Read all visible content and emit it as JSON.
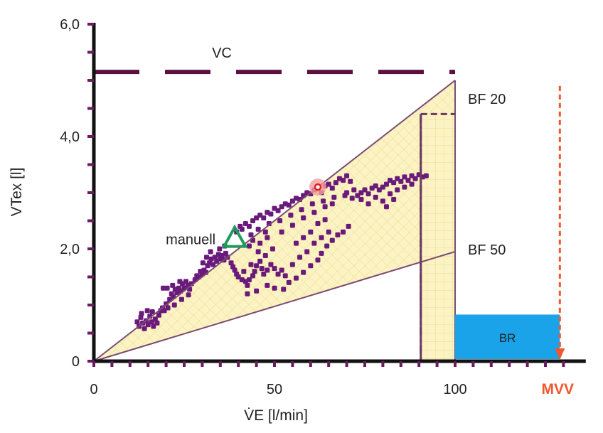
{
  "chart_data": {
    "type": "scatter",
    "xlabel": "V̇E [l/min]",
    "ylabel": "VTex [l]",
    "xlim": [
      0,
      135
    ],
    "ylim": [
      0,
      6
    ],
    "x_ticks": [
      "0",
      "50",
      "100"
    ],
    "y_ticks": [
      "0",
      "2,0",
      "4,0",
      "6,0"
    ],
    "x_tick_values": [
      0,
      50,
      100
    ],
    "y_tick_values": [
      0,
      2,
      4,
      6
    ],
    "grid": false,
    "colors": {
      "axis": "#111111",
      "tick": "#6a1a5e",
      "vc": "#5c1040",
      "bf": "#7b4a75",
      "points": "#6a1a7a",
      "manual": "#1e9a5a",
      "highlight": "#e02020",
      "br": "#1aa3e8",
      "mvv": "#f0572e",
      "shade": "#fbf3c4",
      "shade_grid": "#ecdc8c"
    },
    "vc": {
      "label": "VC",
      "y": 5.15,
      "x_end": 100
    },
    "bf_lines": [
      {
        "label": "BF 20",
        "end": [
          100,
          5.0
        ]
      },
      {
        "label": "BF 50",
        "end": [
          100,
          1.95
        ]
      }
    ],
    "box": {
      "x": 90.5,
      "y": 4.4
    },
    "br": {
      "label": "BR",
      "x": [
        100,
        129
      ],
      "y": [
        0,
        0.83
      ]
    },
    "mvv": {
      "label": "MVV",
      "x": 129,
      "y_top": 4.9
    },
    "manual_point": {
      "label": "manuell",
      "x": 39,
      "y": 2.17
    },
    "highlight_point": {
      "x": 62,
      "y": 3.1
    },
    "points": [
      [
        12.0,
        0.7
      ],
      [
        12.5,
        0.62
      ],
      [
        13.0,
        0.78
      ],
      [
        13.5,
        0.68
      ],
      [
        14.0,
        0.58
      ],
      [
        14.5,
        0.72
      ],
      [
        15.0,
        0.65
      ],
      [
        15.5,
        0.8
      ],
      [
        16.0,
        0.7
      ],
      [
        16.5,
        0.62
      ],
      [
        17.0,
        0.75
      ],
      [
        17.5,
        0.68
      ],
      [
        13.2,
        0.85
      ],
      [
        14.8,
        0.9
      ],
      [
        16.2,
        0.88
      ],
      [
        18.0,
        0.82
      ],
      [
        18.5,
        0.9
      ],
      [
        19.0,
        0.95
      ],
      [
        19.5,
        0.9
      ],
      [
        20.0,
        1.02
      ],
      [
        20.5,
        0.95
      ],
      [
        21.0,
        1.1
      ],
      [
        21.5,
        1.2
      ],
      [
        22.0,
        1.15
      ],
      [
        22.5,
        1.28
      ],
      [
        23.0,
        1.22
      ],
      [
        23.5,
        1.3
      ],
      [
        24.0,
        1.25
      ],
      [
        24.5,
        1.38
      ],
      [
        25.0,
        1.3
      ],
      [
        25.5,
        1.42
      ],
      [
        26.0,
        1.35
      ],
      [
        26.5,
        1.28
      ],
      [
        27.0,
        1.38
      ],
      [
        21.8,
        1.35
      ],
      [
        23.8,
        1.42
      ],
      [
        20.3,
        1.3
      ],
      [
        22.3,
        1.0
      ],
      [
        24.3,
        1.1
      ],
      [
        26.2,
        1.18
      ],
      [
        19.2,
        1.3
      ],
      [
        28.0,
        1.45
      ],
      [
        28.5,
        1.52
      ],
      [
        29.0,
        1.5
      ],
      [
        29.5,
        1.6
      ],
      [
        30.0,
        1.55
      ],
      [
        30.5,
        1.62
      ],
      [
        31.0,
        1.58
      ],
      [
        31.5,
        1.7
      ],
      [
        32.0,
        1.75
      ],
      [
        32.5,
        1.82
      ],
      [
        33.0,
        1.72
      ],
      [
        33.5,
        1.85
      ],
      [
        34.0,
        1.78
      ],
      [
        34.5,
        1.9
      ],
      [
        35.0,
        1.82
      ],
      [
        35.5,
        1.88
      ],
      [
        36.0,
        1.8
      ],
      [
        36.5,
        1.92
      ],
      [
        37.0,
        1.85
      ],
      [
        32.3,
        1.95
      ],
      [
        34.8,
        2.0
      ],
      [
        36.2,
        2.05
      ],
      [
        31.2,
        1.85
      ],
      [
        30.2,
        1.75
      ],
      [
        38.0,
        1.75
      ],
      [
        38.5,
        1.68
      ],
      [
        39.0,
        1.62
      ],
      [
        39.5,
        1.55
      ],
      [
        40.0,
        1.5
      ],
      [
        41.0,
        1.45
      ],
      [
        42.0,
        1.42
      ],
      [
        42.5,
        1.35
      ],
      [
        43.0,
        1.45
      ],
      [
        44.0,
        1.52
      ],
      [
        44.5,
        1.6
      ],
      [
        45.0,
        1.7
      ],
      [
        46.0,
        1.78
      ],
      [
        46.5,
        1.65
      ],
      [
        47.0,
        1.55
      ],
      [
        48.0,
        1.62
      ],
      [
        49.0,
        1.72
      ],
      [
        50.0,
        1.65
      ],
      [
        51.0,
        1.55
      ],
      [
        52.0,
        1.62
      ],
      [
        53.0,
        1.52
      ],
      [
        41.5,
        1.6
      ],
      [
        43.5,
        1.72
      ],
      [
        47.5,
        1.88
      ],
      [
        45.5,
        1.95
      ],
      [
        43.0,
        2.05
      ],
      [
        46.0,
        2.1
      ],
      [
        49.5,
        2.0
      ],
      [
        40.5,
        2.4
      ],
      [
        41.0,
        2.35
      ],
      [
        42.0,
        2.45
      ],
      [
        43.0,
        2.4
      ],
      [
        44.0,
        2.5
      ],
      [
        45.0,
        2.55
      ],
      [
        46.0,
        2.6
      ],
      [
        47.0,
        2.55
      ],
      [
        48.0,
        2.65
      ],
      [
        49.0,
        2.62
      ],
      [
        50.0,
        2.72
      ],
      [
        51.0,
        2.68
      ],
      [
        52.0,
        2.75
      ],
      [
        53.0,
        2.8
      ],
      [
        54.0,
        2.78
      ],
      [
        55.0,
        2.85
      ],
      [
        56.0,
        2.9
      ],
      [
        57.0,
        2.88
      ],
      [
        58.0,
        2.95
      ],
      [
        59.0,
        3.0
      ],
      [
        60.0,
        2.98
      ],
      [
        61.0,
        3.05
      ],
      [
        62.0,
        3.08
      ],
      [
        63.0,
        3.0
      ],
      [
        64.0,
        3.12
      ],
      [
        65.0,
        3.15
      ],
      [
        66.0,
        3.08
      ],
      [
        67.0,
        3.18
      ],
      [
        68.0,
        3.25
      ],
      [
        69.0,
        3.22
      ],
      [
        70.0,
        3.3
      ],
      [
        71.0,
        3.2
      ],
      [
        45.5,
        2.35
      ],
      [
        48.5,
        2.45
      ],
      [
        51.5,
        2.5
      ],
      [
        54.5,
        2.6
      ],
      [
        57.5,
        2.7
      ],
      [
        60.5,
        2.8
      ],
      [
        63.5,
        2.85
      ],
      [
        66.5,
        2.92
      ],
      [
        69.5,
        2.95
      ],
      [
        43.5,
        2.25
      ],
      [
        47.5,
        2.3
      ],
      [
        39.5,
        2.3
      ],
      [
        44.0,
        2.15
      ],
      [
        48.0,
        2.2
      ],
      [
        52.0,
        2.3
      ],
      [
        55.0,
        2.42
      ],
      [
        58.0,
        2.55
      ],
      [
        61.0,
        2.65
      ],
      [
        64.0,
        2.75
      ],
      [
        66.0,
        2.8
      ],
      [
        70.0,
        3.0
      ],
      [
        72.0,
        3.05
      ],
      [
        73.0,
        2.95
      ],
      [
        74.0,
        3.0
      ],
      [
        75.0,
        3.05
      ],
      [
        76.0,
        2.98
      ],
      [
        77.0,
        3.08
      ],
      [
        78.0,
        3.12
      ],
      [
        79.0,
        3.05
      ],
      [
        80.0,
        3.1
      ],
      [
        81.0,
        3.15
      ],
      [
        82.0,
        3.22
      ],
      [
        83.0,
        3.18
      ],
      [
        84.0,
        3.25
      ],
      [
        85.0,
        3.2
      ],
      [
        86.0,
        3.28
      ],
      [
        87.0,
        3.22
      ],
      [
        88.0,
        3.3
      ],
      [
        89.0,
        3.25
      ],
      [
        90.0,
        3.32
      ],
      [
        91.0,
        3.28
      ],
      [
        92.0,
        3.3
      ],
      [
        78.0,
        2.92
      ],
      [
        80.0,
        2.85
      ],
      [
        82.0,
        2.98
      ],
      [
        76.0,
        2.8
      ],
      [
        74.0,
        2.88
      ],
      [
        84.0,
        3.05
      ],
      [
        86.0,
        3.1
      ],
      [
        88.0,
        3.15
      ],
      [
        81.0,
        2.75
      ],
      [
        83.0,
        2.88
      ],
      [
        71.5,
        2.9
      ],
      [
        42.5,
        1.2
      ],
      [
        45.0,
        1.25
      ],
      [
        48.0,
        1.35
      ],
      [
        50.0,
        1.3
      ],
      [
        52.5,
        1.28
      ],
      [
        54.0,
        1.4
      ],
      [
        56.0,
        1.48
      ],
      [
        58.0,
        1.58
      ],
      [
        60.0,
        1.7
      ],
      [
        62.0,
        1.8
      ],
      [
        63.0,
        1.92
      ],
      [
        64.5,
        2.05
      ],
      [
        66.0,
        2.15
      ],
      [
        67.5,
        2.25
      ],
      [
        69.0,
        2.3
      ],
      [
        70.5,
        2.4
      ],
      [
        55.0,
        1.72
      ],
      [
        57.0,
        1.85
      ],
      [
        59.0,
        1.95
      ],
      [
        61.0,
        2.1
      ],
      [
        63.0,
        2.2
      ],
      [
        65.0,
        2.3
      ],
      [
        56.0,
        2.1
      ],
      [
        58.0,
        2.2
      ],
      [
        60.0,
        2.3
      ],
      [
        62.0,
        2.45
      ],
      [
        64.0,
        2.52
      ]
    ]
  }
}
